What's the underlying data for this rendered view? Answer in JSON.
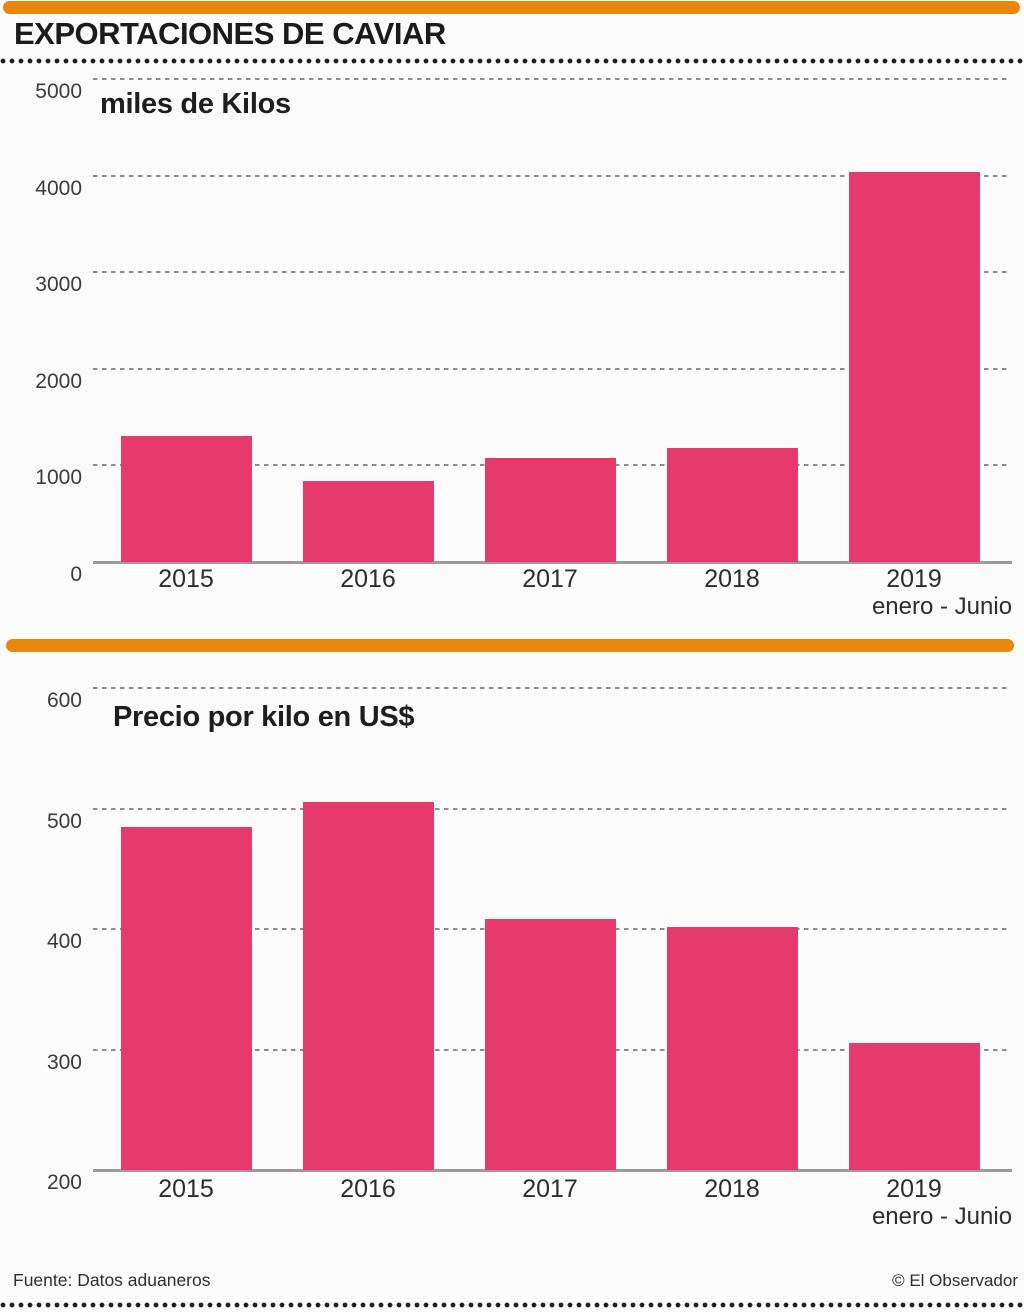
{
  "header": {
    "title": "EXPORTACIONES DE CAVIAR"
  },
  "footer": {
    "source": "Fuente: Datos aduaneros",
    "credit": "© El Observador"
  },
  "colors": {
    "bar": "#E6396E",
    "accent": "#E9860E",
    "grid": "#8C8C8C",
    "axis": "#9B9B9B",
    "text": "#1E1E1E"
  },
  "chart_data": [
    {
      "type": "bar",
      "title": "miles de Kilos",
      "categories": [
        "2015",
        "2016",
        "2017",
        "2018",
        "2019"
      ],
      "category_note": {
        "index": 4,
        "label": "enero - Junio"
      },
      "values": [
        1300,
        835,
        1080,
        1180,
        4040
      ],
      "xlabel": "",
      "ylabel": "miles de Kilos",
      "ylim": [
        0,
        5000
      ],
      "yticks": [
        0,
        1000,
        2000,
        3000,
        4000,
        5000
      ],
      "grid": "horizontal dotted",
      "legend": "none"
    },
    {
      "type": "bar",
      "title": "Precio por kilo en US$",
      "categories": [
        "2015",
        "2016",
        "2017",
        "2018",
        "2019"
      ],
      "category_note": {
        "index": 4,
        "label": "enero - Junio"
      },
      "values": [
        485,
        505,
        408,
        402,
        305
      ],
      "xlabel": "",
      "ylabel": "Precio por kilo en US$",
      "ylim": [
        200,
        600
      ],
      "yticks": [
        200,
        300,
        400,
        500,
        600
      ],
      "grid": "horizontal dotted",
      "legend": "none"
    }
  ]
}
